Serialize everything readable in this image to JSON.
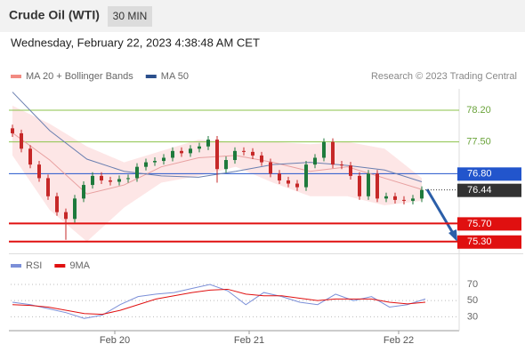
{
  "header": {
    "title": "Crude Oil (WTI)",
    "interval": "30 MIN",
    "date": "Wednesday, February 22, 2023 4:38:48 AM CET"
  },
  "chart_data": [
    {
      "type": "candlestick",
      "legend": [
        {
          "name": "MA 20 + Bollinger Bands",
          "color": "#f28b82"
        },
        {
          "name": "MA 50",
          "color": "#2b4f8c"
        }
      ],
      "credit": "Research © 2023 Trading Central",
      "xlim": [
        -0.2,
        50.2
      ],
      "xticks": [
        {
          "value": 11.5,
          "label": "Feb 20"
        },
        {
          "value": 26.6,
          "label": "Feb 21"
        },
        {
          "value": 43.4,
          "label": "Feb 22"
        }
      ],
      "ylim": [
        75.08,
        78.67
      ],
      "up_color": "#1e7a3c",
      "down_color": "#c62828",
      "open": [
        77.8,
        77.69,
        77.35,
        77.0,
        76.7,
        76.3,
        75.95,
        75.8,
        76.25,
        76.55,
        76.75,
        76.65,
        76.62,
        76.68,
        76.7,
        76.95,
        77.05,
        77.08,
        77.15,
        77.3,
        77.25,
        77.35,
        77.4,
        77.55,
        76.9,
        77.1,
        77.3,
        77.28,
        77.2,
        77.05,
        76.8,
        76.65,
        76.58,
        76.5,
        77.0,
        77.15,
        77.5,
        77.0,
        76.98,
        76.75,
        76.3,
        76.8,
        76.25,
        76.3,
        76.22,
        76.2,
        76.25
      ],
      "high": [
        77.88,
        77.77,
        77.43,
        77.08,
        76.78,
        76.38,
        76.03,
        76.33,
        76.63,
        76.83,
        76.83,
        76.73,
        76.76,
        76.78,
        77.03,
        77.13,
        77.16,
        77.23,
        77.38,
        77.38,
        77.43,
        77.48,
        77.63,
        77.63,
        77.18,
        77.38,
        77.38,
        77.36,
        77.28,
        77.13,
        76.88,
        76.73,
        76.66,
        77.08,
        77.23,
        77.58,
        77.58,
        77.08,
        77.06,
        76.83,
        76.88,
        76.88,
        76.38,
        76.38,
        76.3,
        76.33,
        76.52
      ],
      "low": [
        77.61,
        77.27,
        76.92,
        76.62,
        76.22,
        75.87,
        75.34,
        75.72,
        76.17,
        76.47,
        76.57,
        76.54,
        76.54,
        76.6,
        76.62,
        76.87,
        76.97,
        77.0,
        77.07,
        77.17,
        77.17,
        77.27,
        77.32,
        76.6,
        76.82,
        77.02,
        77.2,
        77.12,
        76.97,
        76.72,
        76.57,
        76.5,
        76.42,
        76.42,
        76.92,
        77.07,
        76.92,
        76.9,
        76.67,
        76.22,
        76.22,
        76.17,
        76.17,
        76.14,
        76.12,
        76.12,
        76.17
      ],
      "close": [
        77.69,
        77.35,
        77.0,
        76.7,
        76.3,
        75.95,
        75.8,
        76.25,
        76.55,
        76.75,
        76.65,
        76.62,
        76.68,
        76.7,
        76.95,
        77.05,
        77.08,
        77.15,
        77.3,
        77.25,
        77.35,
        77.4,
        77.55,
        76.9,
        77.1,
        77.3,
        77.28,
        77.2,
        77.05,
        76.8,
        76.65,
        76.58,
        76.5,
        77.0,
        77.15,
        77.5,
        77.0,
        76.98,
        76.75,
        76.3,
        76.8,
        76.25,
        76.3,
        76.22,
        76.2,
        76.25,
        76.44
      ],
      "bands": {
        "upper": [
          78.3,
          77.9,
          77.4,
          77.05,
          77.3,
          77.55,
          77.5,
          77.5,
          77.45,
          77.5,
          77.35,
          76.7
        ],
        "lower": [
          77.2,
          76.0,
          75.3,
          76.05,
          76.6,
          76.75,
          76.95,
          76.6,
          76.3,
          76.3,
          76.1,
          76.2
        ],
        "color": "#fde0e0"
      },
      "series": [
        {
          "name": "MA 20",
          "color": "#e8a0a0",
          "values": [
            77.7,
            77.1,
            76.35,
            76.55,
            76.95,
            77.15,
            77.2,
            77.05,
            76.85,
            76.95,
            76.7,
            76.45
          ]
        },
        {
          "name": "MA 50",
          "color": "#6a7fb0",
          "values": [
            78.6,
            77.75,
            77.12,
            76.85,
            76.75,
            76.72,
            76.85,
            77.0,
            77.05,
            76.98,
            76.88,
            76.62
          ]
        }
      ],
      "levels": [
        {
          "value": 78.2,
          "label": "78.20",
          "color": "#8bc34a",
          "style": "text"
        },
        {
          "value": 77.5,
          "label": "77.50",
          "color": "#8bc34a",
          "style": "text"
        },
        {
          "value": 76.8,
          "label": "76.80",
          "color": "#2255cc",
          "style": "box"
        },
        {
          "value": 76.44,
          "label": "76.44",
          "color": "#333333",
          "style": "box-dotted"
        },
        {
          "value": 75.7,
          "label": "75.70",
          "color": "#e01010",
          "style": "box"
        },
        {
          "value": 75.3,
          "label": "75.30",
          "color": "#e01010",
          "style": "box"
        }
      ]
    },
    {
      "type": "line",
      "legend": [
        {
          "name": "RSI",
          "color": "#7b8fd8"
        },
        {
          "name": "9MA",
          "color": "#e01010"
        }
      ],
      "ylim": [
        15,
        81
      ],
      "yticks": [
        30,
        50,
        70
      ],
      "series": [
        {
          "name": "RSI",
          "color": "#7b8fd8",
          "values": [
            48,
            45,
            40,
            35,
            28,
            32,
            45,
            55,
            58,
            60,
            65,
            70,
            62,
            45,
            60,
            55,
            48,
            45,
            58,
            50,
            55,
            42,
            45,
            52
          ]
        },
        {
          "name": "9MA",
          "color": "#e01010",
          "values": [
            45,
            44,
            42,
            38,
            34,
            33,
            38,
            45,
            52,
            56,
            60,
            63,
            64,
            58,
            56,
            56,
            53,
            50,
            52,
            52,
            52,
            48,
            46,
            48
          ]
        }
      ]
    }
  ]
}
